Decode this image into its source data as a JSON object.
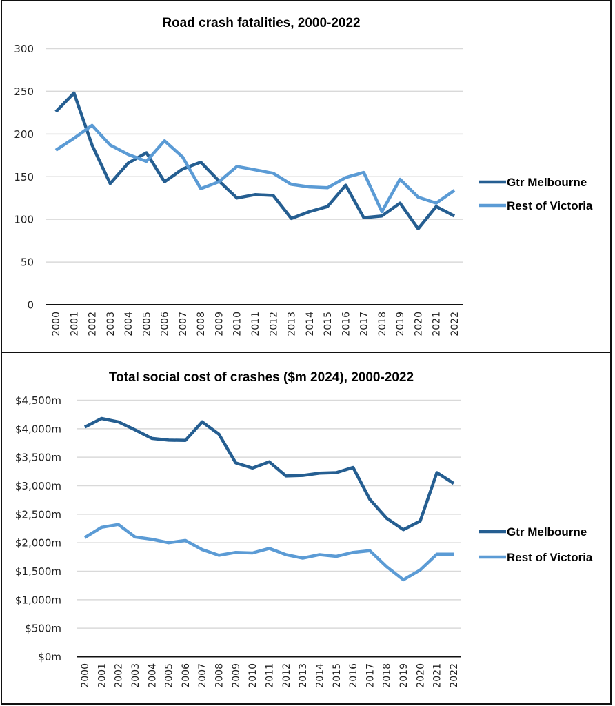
{
  "colors": {
    "gtr_melbourne": "#255e91",
    "rest_of_victoria": "#5b9bd5"
  },
  "chart_data": [
    {
      "type": "line",
      "title": "Road crash fatalities, 2000-2022",
      "xlabel": "",
      "ylabel": "",
      "ylim": [
        0,
        300
      ],
      "yticks": [
        0,
        50,
        100,
        150,
        200,
        250,
        300
      ],
      "ytick_labels": [
        "0",
        "50",
        "100",
        "150",
        "200",
        "250",
        "300"
      ],
      "grid": true,
      "legend": "right",
      "categories": [
        "2000",
        "2001",
        "2002",
        "2003",
        "2004",
        "2005",
        "2006",
        "2007",
        "2008",
        "2009",
        "2010",
        "2011",
        "2012",
        "2013",
        "2014",
        "2015",
        "2016",
        "2017",
        "2018",
        "2019",
        "2020",
        "2021",
        "2022"
      ],
      "series": [
        {
          "name": "Gtr Melbourne",
          "color": "#255e91",
          "values": [
            226,
            248,
            187,
            142,
            166,
            178,
            144,
            159,
            167,
            145,
            125,
            129,
            128,
            101,
            109,
            115,
            140,
            102,
            104,
            119,
            89,
            115,
            104
          ]
        },
        {
          "name": "Rest of Victoria",
          "color": "#5b9bd5",
          "values": [
            181,
            195,
            210,
            187,
            176,
            168,
            192,
            173,
            136,
            144,
            162,
            158,
            154,
            141,
            138,
            137,
            149,
            155,
            109,
            147,
            126,
            119,
            134
          ]
        }
      ]
    },
    {
      "type": "line",
      "title": "Total social cost of crashes ($m 2024), 2000-2022",
      "xlabel": "",
      "ylabel": "",
      "ylim": [
        0,
        4500
      ],
      "yticks": [
        0,
        500,
        1000,
        1500,
        2000,
        2500,
        3000,
        3500,
        4000,
        4500
      ],
      "ytick_labels": [
        "$0m",
        "$500m",
        "$1,000m",
        "$1,500m",
        "$2,000m",
        "$2,500m",
        "$3,000m",
        "$3,500m",
        "$4,000m",
        "$4,500m"
      ],
      "grid": true,
      "legend": "right",
      "categories": [
        "2000",
        "2001",
        "2002",
        "2003",
        "2004",
        "2005",
        "2006",
        "2007",
        "2008",
        "2009",
        "2010",
        "2011",
        "2012",
        "2013",
        "2014",
        "2015",
        "2016",
        "2017",
        "2018",
        "2019",
        "2020",
        "2021",
        "2022"
      ],
      "series": [
        {
          "name": "Gtr Melbourne",
          "color": "#255e91",
          "values": [
            4030,
            4180,
            4120,
            3980,
            3830,
            3800,
            3795,
            4120,
            3905,
            3400,
            3310,
            3420,
            3170,
            3180,
            3220,
            3230,
            3320,
            2760,
            2430,
            2230,
            2380,
            3230,
            3040
          ]
        },
        {
          "name": "Rest of Victoria",
          "color": "#5b9bd5",
          "values": [
            2090,
            2270,
            2320,
            2100,
            2060,
            2000,
            2040,
            1880,
            1780,
            1830,
            1820,
            1900,
            1790,
            1730,
            1790,
            1760,
            1830,
            1860,
            1580,
            1350,
            1520,
            1800,
            1800
          ]
        }
      ]
    }
  ]
}
